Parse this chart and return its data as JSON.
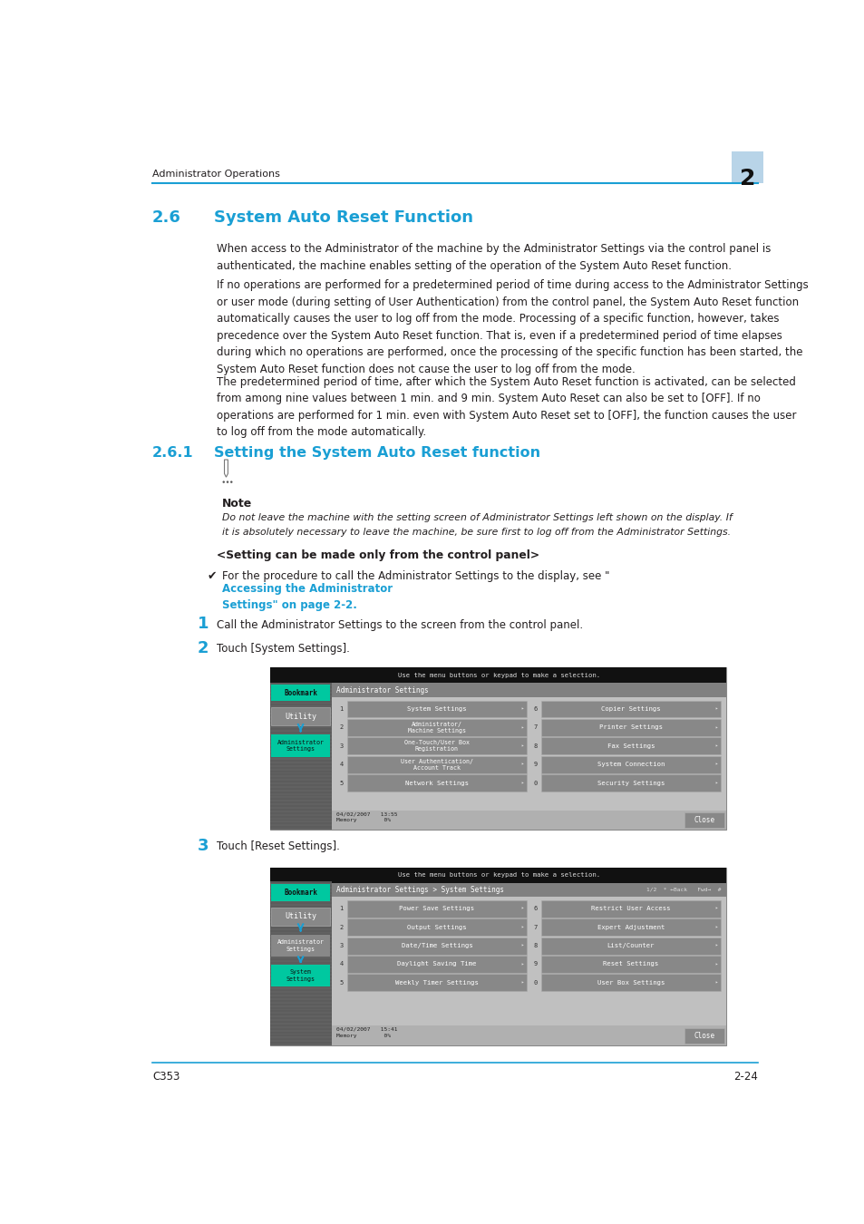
{
  "page_width": 9.54,
  "page_height": 13.5,
  "bg_color": "#ffffff",
  "header_text": "Administrator Operations",
  "header_chapter": "2",
  "header_chapter_bg": "#b8d4e8",
  "footer_left": "C353",
  "footer_right": "2-24",
  "line_color": "#1a9fd4",
  "section_title": "2.6",
  "section_name": "System Auto Reset Function",
  "subsection_title": "2.6.1",
  "subsection_name": "Setting the System Auto Reset function",
  "cyan_color": "#1a9fd4",
  "body_text_color": "#231f20",
  "body_font_size": 8.5,
  "para1": "When access to the Administrator of the machine by the Administrator Settings via the control panel is\nauthenticated, the machine enables setting of the operation of the System Auto Reset function.",
  "para2": "If no operations are performed for a predetermined period of time during access to the Administrator Settings\nor user mode (during setting of User Authentication) from the control panel, the System Auto Reset function\nautomatically causes the user to log off from the mode. Processing of a specific function, however, takes\nprecedence over the System Auto Reset function. That is, even if a predetermined period of time elapses\nduring which no operations are performed, once the processing of the specific function has been started, the\nSystem Auto Reset function does not cause the user to log off from the mode.",
  "para3": "The predetermined period of time, after which the System Auto Reset function is activated, can be selected\nfrom among nine values between 1 min. and 9 min. System Auto Reset can also be set to [OFF]. If no\noperations are performed for 1 min. even with System Auto Reset set to [OFF], the function causes the user\nto log off from the mode automatically.",
  "note_label": "Note",
  "note_text1": "Do not leave the machine with the setting screen of Administrator Settings left shown on the display. If",
  "note_text2": "it is absolutely necessary to leave the machine, be sure first to log off from the Administrator Settings.",
  "setting_header": "<Setting can be made only from the control panel>",
  "step1_num": "1",
  "step1_text": "Call the Administrator Settings to the screen from the control panel.",
  "step2_num": "2",
  "step2_text": "Touch [System Settings].",
  "step3_num": "3",
  "step3_text": "Touch [Reset Settings].",
  "link_color": "#1a9fd4",
  "screen1_menu_left": [
    "System Settings",
    "Administrator/\nMachine Settings",
    "One-Touch/User Box\nRegistration",
    "User Authentication/\nAccount Track",
    "Network Settings"
  ],
  "screen1_menu_right": [
    "Copier Settings",
    "Printer Settings",
    "Fax Settings",
    "System Connection",
    "Security Settings"
  ],
  "screen1_nums_left": [
    "1",
    "2",
    "3",
    "4",
    "5"
  ],
  "screen1_nums_right": [
    "6",
    "7",
    "8",
    "9",
    "0"
  ],
  "screen1_title": "Administrator Settings",
  "screen1_status": "04/02/2007   13:55\nMemory        0%",
  "screen2_menu_left": [
    "Power Save Settings",
    "Output Settings",
    "Date/Time Settings",
    "Daylight Saving Time",
    "Weekly Timer Settings"
  ],
  "screen2_menu_right": [
    "Restrict User Access",
    "Expert Adjustment",
    "List/Counter",
    "Reset Settings",
    "User Box Settings"
  ],
  "screen2_nums_left": [
    "1",
    "2",
    "3",
    "4",
    "5"
  ],
  "screen2_nums_right": [
    "6",
    "7",
    "8",
    "9",
    "0"
  ],
  "screen2_title": "Administrator Settings > System Settings",
  "screen2_status": "04/02/2007   15:41\nMemory        0%",
  "screen_top_text": "Use the menu buttons or keypad to make a selection."
}
